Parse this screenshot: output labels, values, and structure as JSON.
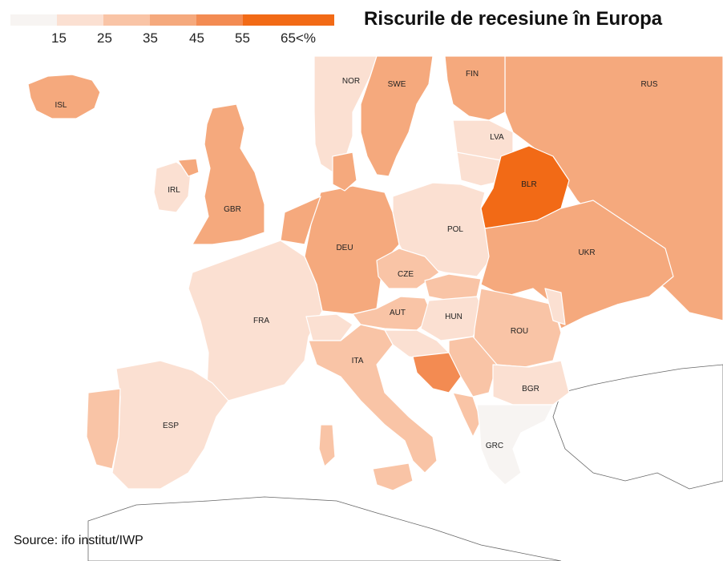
{
  "title": "Riscurile de recesiune în Europa",
  "source": "Source: ifo institut/IWP",
  "legend": {
    "ticks": [
      "15",
      "25",
      "35",
      "45",
      "55",
      "65<%"
    ],
    "colors": [
      "#f7f4f2",
      "#fbe0d2",
      "#f9c4a6",
      "#f5a97d",
      "#f38b52",
      "#f26a16"
    ]
  },
  "countries": {
    "ISL": {
      "label": "ISL",
      "color": "#f5a97d"
    },
    "NOR": {
      "label": "NOR",
      "color": "#fbe0d2"
    },
    "SWE": {
      "label": "SWE",
      "color": "#f5a97d"
    },
    "FIN": {
      "label": "FIN",
      "color": "#f5a97d"
    },
    "RUS": {
      "label": "RUS",
      "color": "#f5a97d"
    },
    "LVA": {
      "label": "LVA",
      "color": "#fbe0d2"
    },
    "BLR": {
      "label": "BLR",
      "color": "#f26a16"
    },
    "IRL": {
      "label": "IRL",
      "color": "#fbe0d2"
    },
    "GBR": {
      "label": "GBR",
      "color": "#f5a97d"
    },
    "DEU": {
      "label": "DEU",
      "color": "#f5a97d"
    },
    "POL": {
      "label": "POL",
      "color": "#fbe0d2"
    },
    "CZE": {
      "label": "CZE",
      "color": "#f9c4a6"
    },
    "UKR": {
      "label": "UKR",
      "color": "#f5a97d"
    },
    "FRA": {
      "label": "FRA",
      "color": "#fbe0d2"
    },
    "AUT": {
      "label": "AUT",
      "color": "#f9c4a6"
    },
    "HUN": {
      "label": "HUN",
      "color": "#fbe0d2"
    },
    "ROU": {
      "label": "ROU",
      "color": "#f9c4a6"
    },
    "ITA": {
      "label": "ITA",
      "color": "#f9c4a6"
    },
    "BIH": {
      "color": "#f38b52"
    },
    "BGR": {
      "label": "BGR",
      "color": "#fbe0d2"
    },
    "ESP": {
      "label": "ESP",
      "color": "#fbe0d2"
    },
    "GRC": {
      "label": "GRC",
      "color": "#f7f4f2"
    }
  }
}
